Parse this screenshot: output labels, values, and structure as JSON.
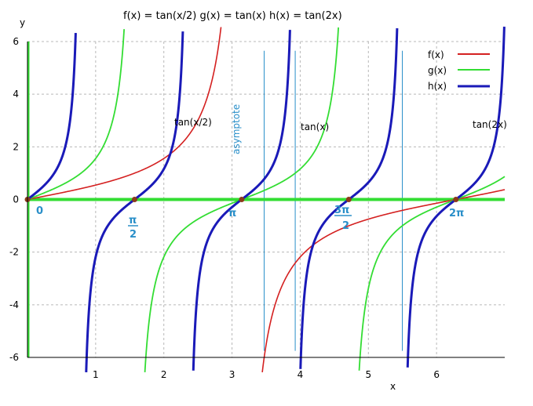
{
  "chart_data": {
    "type": "line",
    "title": "f(x) =  tan(x/2)  g(x) =   tan(x)   h(x) =  tan(2x)",
    "xlabel": "x",
    "ylabel": "y",
    "xlim": [
      0,
      7
    ],
    "ylim": [
      -6,
      6
    ],
    "x_ticks": [
      "1",
      "2",
      "3",
      "4",
      "5",
      "6"
    ],
    "y_ticks": [
      "6",
      "4",
      "2",
      "0",
      "-2",
      "-4",
      "-6"
    ],
    "grid": true,
    "legend_position": "top-right",
    "series": [
      {
        "name": "f(x)",
        "formula": "tan(x/2)",
        "color": "#d42020"
      },
      {
        "name": "g(x)",
        "formula": "tan(x)",
        "color": "#33dd33"
      },
      {
        "name": "h(x)",
        "formula": "tan(2x)",
        "color": "#1a1ab8"
      }
    ],
    "x_axis_line_color": "#33dd33",
    "asymptote_color": "#2a8fc9",
    "point_color": "#8b3a1a",
    "annotations": {
      "f_label": "tan(x/2)",
      "g_label": "tan(x)",
      "h_label": "tan(2x)",
      "asymptote": "asymptote",
      "zero": "0",
      "pi": "π",
      "two_pi": "2π",
      "pi_over_2_num": "π",
      "pi_over_2_den": "2",
      "three_pi_over_2_num": "3π",
      "three_pi_over_2_den": "2"
    },
    "marked_points": [
      {
        "label": "0",
        "x": 0,
        "y": 0
      },
      {
        "label": "π/2",
        "x": 1.5708,
        "y": 0
      },
      {
        "label": "π",
        "x": 3.1416,
        "y": 0
      },
      {
        "label": "3π/2",
        "x": 4.7124,
        "y": 0
      },
      {
        "label": "2π",
        "x": 6.2832,
        "y": 0
      }
    ]
  }
}
